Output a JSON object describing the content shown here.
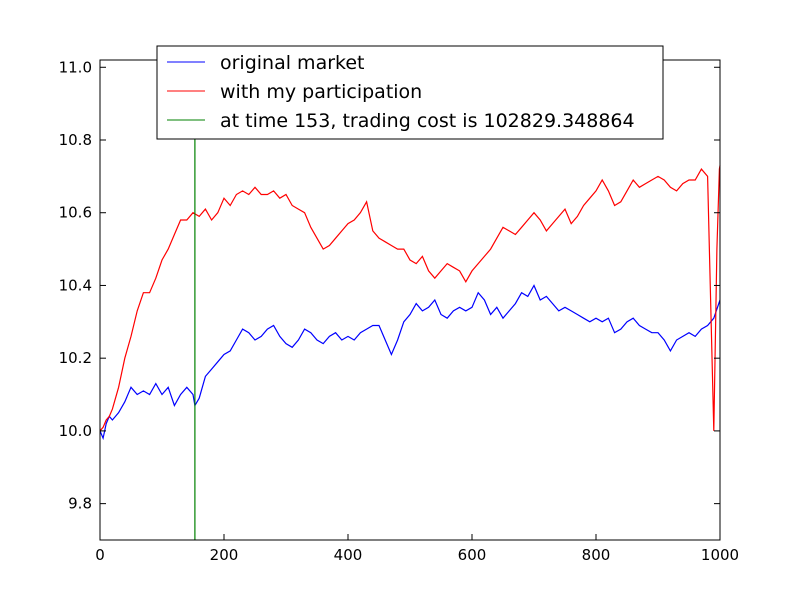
{
  "chart_data": {
    "type": "line",
    "title": "",
    "xlabel": "",
    "ylabel": "",
    "xlim": [
      0,
      1000
    ],
    "ylim": [
      9.7,
      11.02
    ],
    "xticks": [
      0,
      200,
      400,
      600,
      800,
      1000
    ],
    "xtick_labels": [
      "0",
      "200",
      "400",
      "600",
      "800",
      "1000"
    ],
    "yticks": [
      9.8,
      10.0,
      10.2,
      10.4,
      10.6,
      10.8,
      11.0
    ],
    "ytick_labels": [
      "9.8",
      "10.0",
      "10.2",
      "10.4",
      "10.6",
      "10.8",
      "11.0"
    ],
    "grid": false,
    "legend_position": "top-center",
    "series": [
      {
        "name": "original market",
        "color": "#0000ff",
        "x": [
          0,
          5,
          10,
          15,
          20,
          30,
          40,
          50,
          60,
          70,
          80,
          90,
          100,
          110,
          120,
          130,
          140,
          150,
          153,
          160,
          170,
          180,
          190,
          200,
          210,
          220,
          230,
          240,
          250,
          260,
          270,
          280,
          290,
          300,
          310,
          320,
          330,
          340,
          350,
          360,
          370,
          380,
          390,
          400,
          410,
          420,
          430,
          440,
          450,
          460,
          470,
          480,
          490,
          500,
          510,
          520,
          530,
          540,
          550,
          560,
          570,
          580,
          590,
          600,
          610,
          620,
          630,
          640,
          650,
          660,
          670,
          680,
          690,
          700,
          710,
          720,
          730,
          740,
          750,
          760,
          770,
          780,
          790,
          800,
          810,
          820,
          830,
          840,
          850,
          860,
          870,
          880,
          890,
          900,
          910,
          920,
          930,
          940,
          950,
          960,
          970,
          980,
          990,
          1000
        ],
        "y": [
          10.0,
          9.98,
          10.02,
          10.04,
          10.03,
          10.05,
          10.08,
          10.12,
          10.1,
          10.11,
          10.1,
          10.13,
          10.1,
          10.12,
          10.07,
          10.1,
          10.12,
          10.1,
          10.07,
          10.09,
          10.15,
          10.17,
          10.19,
          10.21,
          10.22,
          10.25,
          10.28,
          10.27,
          10.25,
          10.26,
          10.28,
          10.29,
          10.26,
          10.24,
          10.23,
          10.25,
          10.28,
          10.27,
          10.25,
          10.24,
          10.26,
          10.27,
          10.25,
          10.26,
          10.25,
          10.27,
          10.28,
          10.29,
          10.29,
          10.25,
          10.21,
          10.25,
          10.3,
          10.32,
          10.35,
          10.33,
          10.34,
          10.36,
          10.32,
          10.31,
          10.33,
          10.34,
          10.33,
          10.34,
          10.38,
          10.36,
          10.32,
          10.34,
          10.31,
          10.33,
          10.35,
          10.38,
          10.37,
          10.4,
          10.36,
          10.37,
          10.35,
          10.33,
          10.34,
          10.33,
          10.32,
          10.31,
          10.3,
          10.31,
          10.3,
          10.31,
          10.27,
          10.28,
          10.3,
          10.31,
          10.29,
          10.28,
          10.27,
          10.27,
          10.25,
          10.22,
          10.25,
          10.26,
          10.27,
          10.26,
          10.28,
          10.29,
          10.31,
          10.36
        ]
      },
      {
        "name": "with my participation",
        "color": "#ff0000",
        "x": [
          0,
          5,
          10,
          15,
          20,
          30,
          40,
          50,
          60,
          70,
          80,
          90,
          100,
          110,
          120,
          130,
          140,
          150,
          160,
          170,
          180,
          190,
          200,
          210,
          220,
          230,
          240,
          250,
          260,
          270,
          280,
          290,
          300,
          310,
          320,
          330,
          340,
          350,
          360,
          370,
          380,
          390,
          400,
          410,
          420,
          430,
          440,
          450,
          460,
          470,
          480,
          490,
          500,
          510,
          520,
          530,
          540,
          550,
          560,
          570,
          580,
          590,
          600,
          610,
          620,
          630,
          640,
          650,
          660,
          670,
          680,
          690,
          700,
          710,
          720,
          730,
          740,
          750,
          760,
          770,
          780,
          790,
          800,
          810,
          820,
          830,
          840,
          850,
          860,
          870,
          880,
          890,
          900,
          910,
          920,
          930,
          940,
          950,
          960,
          970,
          980,
          990,
          995,
          999,
          1000
        ],
        "y": [
          10.0,
          10.01,
          10.03,
          10.04,
          10.06,
          10.12,
          10.2,
          10.26,
          10.33,
          10.38,
          10.38,
          10.42,
          10.47,
          10.5,
          10.54,
          10.58,
          10.58,
          10.6,
          10.59,
          10.61,
          10.58,
          10.6,
          10.64,
          10.62,
          10.65,
          10.66,
          10.65,
          10.67,
          10.65,
          10.65,
          10.66,
          10.64,
          10.65,
          10.62,
          10.61,
          10.6,
          10.56,
          10.53,
          10.5,
          10.51,
          10.53,
          10.55,
          10.57,
          10.58,
          10.6,
          10.63,
          10.55,
          10.53,
          10.52,
          10.51,
          10.5,
          10.5,
          10.47,
          10.46,
          10.48,
          10.44,
          10.42,
          10.44,
          10.46,
          10.45,
          10.44,
          10.41,
          10.44,
          10.46,
          10.48,
          10.5,
          10.53,
          10.56,
          10.55,
          10.54,
          10.56,
          10.58,
          10.6,
          10.58,
          10.55,
          10.57,
          10.59,
          10.61,
          10.57,
          10.59,
          10.62,
          10.64,
          10.66,
          10.69,
          10.66,
          10.62,
          10.63,
          10.66,
          10.69,
          10.67,
          10.68,
          10.69,
          10.7,
          10.69,
          10.67,
          10.66,
          10.68,
          10.69,
          10.69,
          10.72,
          10.7,
          10.0,
          10.5,
          10.72,
          10.73
        ]
      },
      {
        "name": "at time 153, trading cost is 102829.348864",
        "color": "#008000",
        "x": [
          153,
          153
        ],
        "y": [
          9.7,
          11.02
        ]
      }
    ]
  }
}
